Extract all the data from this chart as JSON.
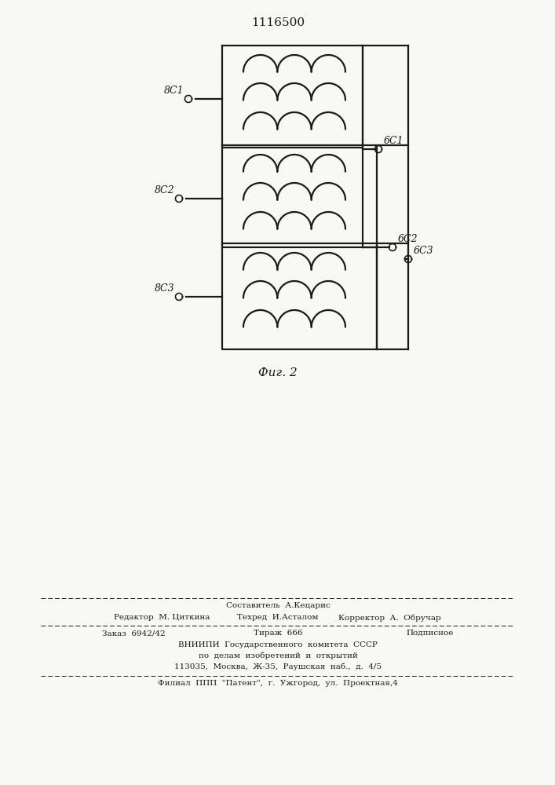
{
  "title": "1116500",
  "fig_caption": "Фиг. 2",
  "bg_color": "#f8f8f6",
  "line_color": "#1a1a1a",
  "label_8c1": "8С1",
  "label_8c2": "8С2",
  "label_8c3": "8С3",
  "label_6c1": "6С1",
  "label_6c2": "6С2",
  "label_6c3": "6С3",
  "footer_line1": "Составитель  А.Кецарис",
  "footer_line2": "Редактор  М. Циткина",
  "footer_line2b": "Техред  И.Асталом",
  "footer_line2c": "Корректор  А.  Обручар",
  "footer_line3": "Заказ  6942/42",
  "footer_line3b": "Тираж  666",
  "footer_line3c": "Подписное",
  "footer_line4": "ВНИИПИ  Государственного  комитета  СССР",
  "footer_line5": "по  делам  изобретений  и  открытий",
  "footer_line6": "113035,  Москва,  Ж-35,  Раушская  наб.,  д.  4/5",
  "footer_line7": "Филиал  ППП  \"Патент\",  г.  Ужгород,  ул.  Проектная,4"
}
